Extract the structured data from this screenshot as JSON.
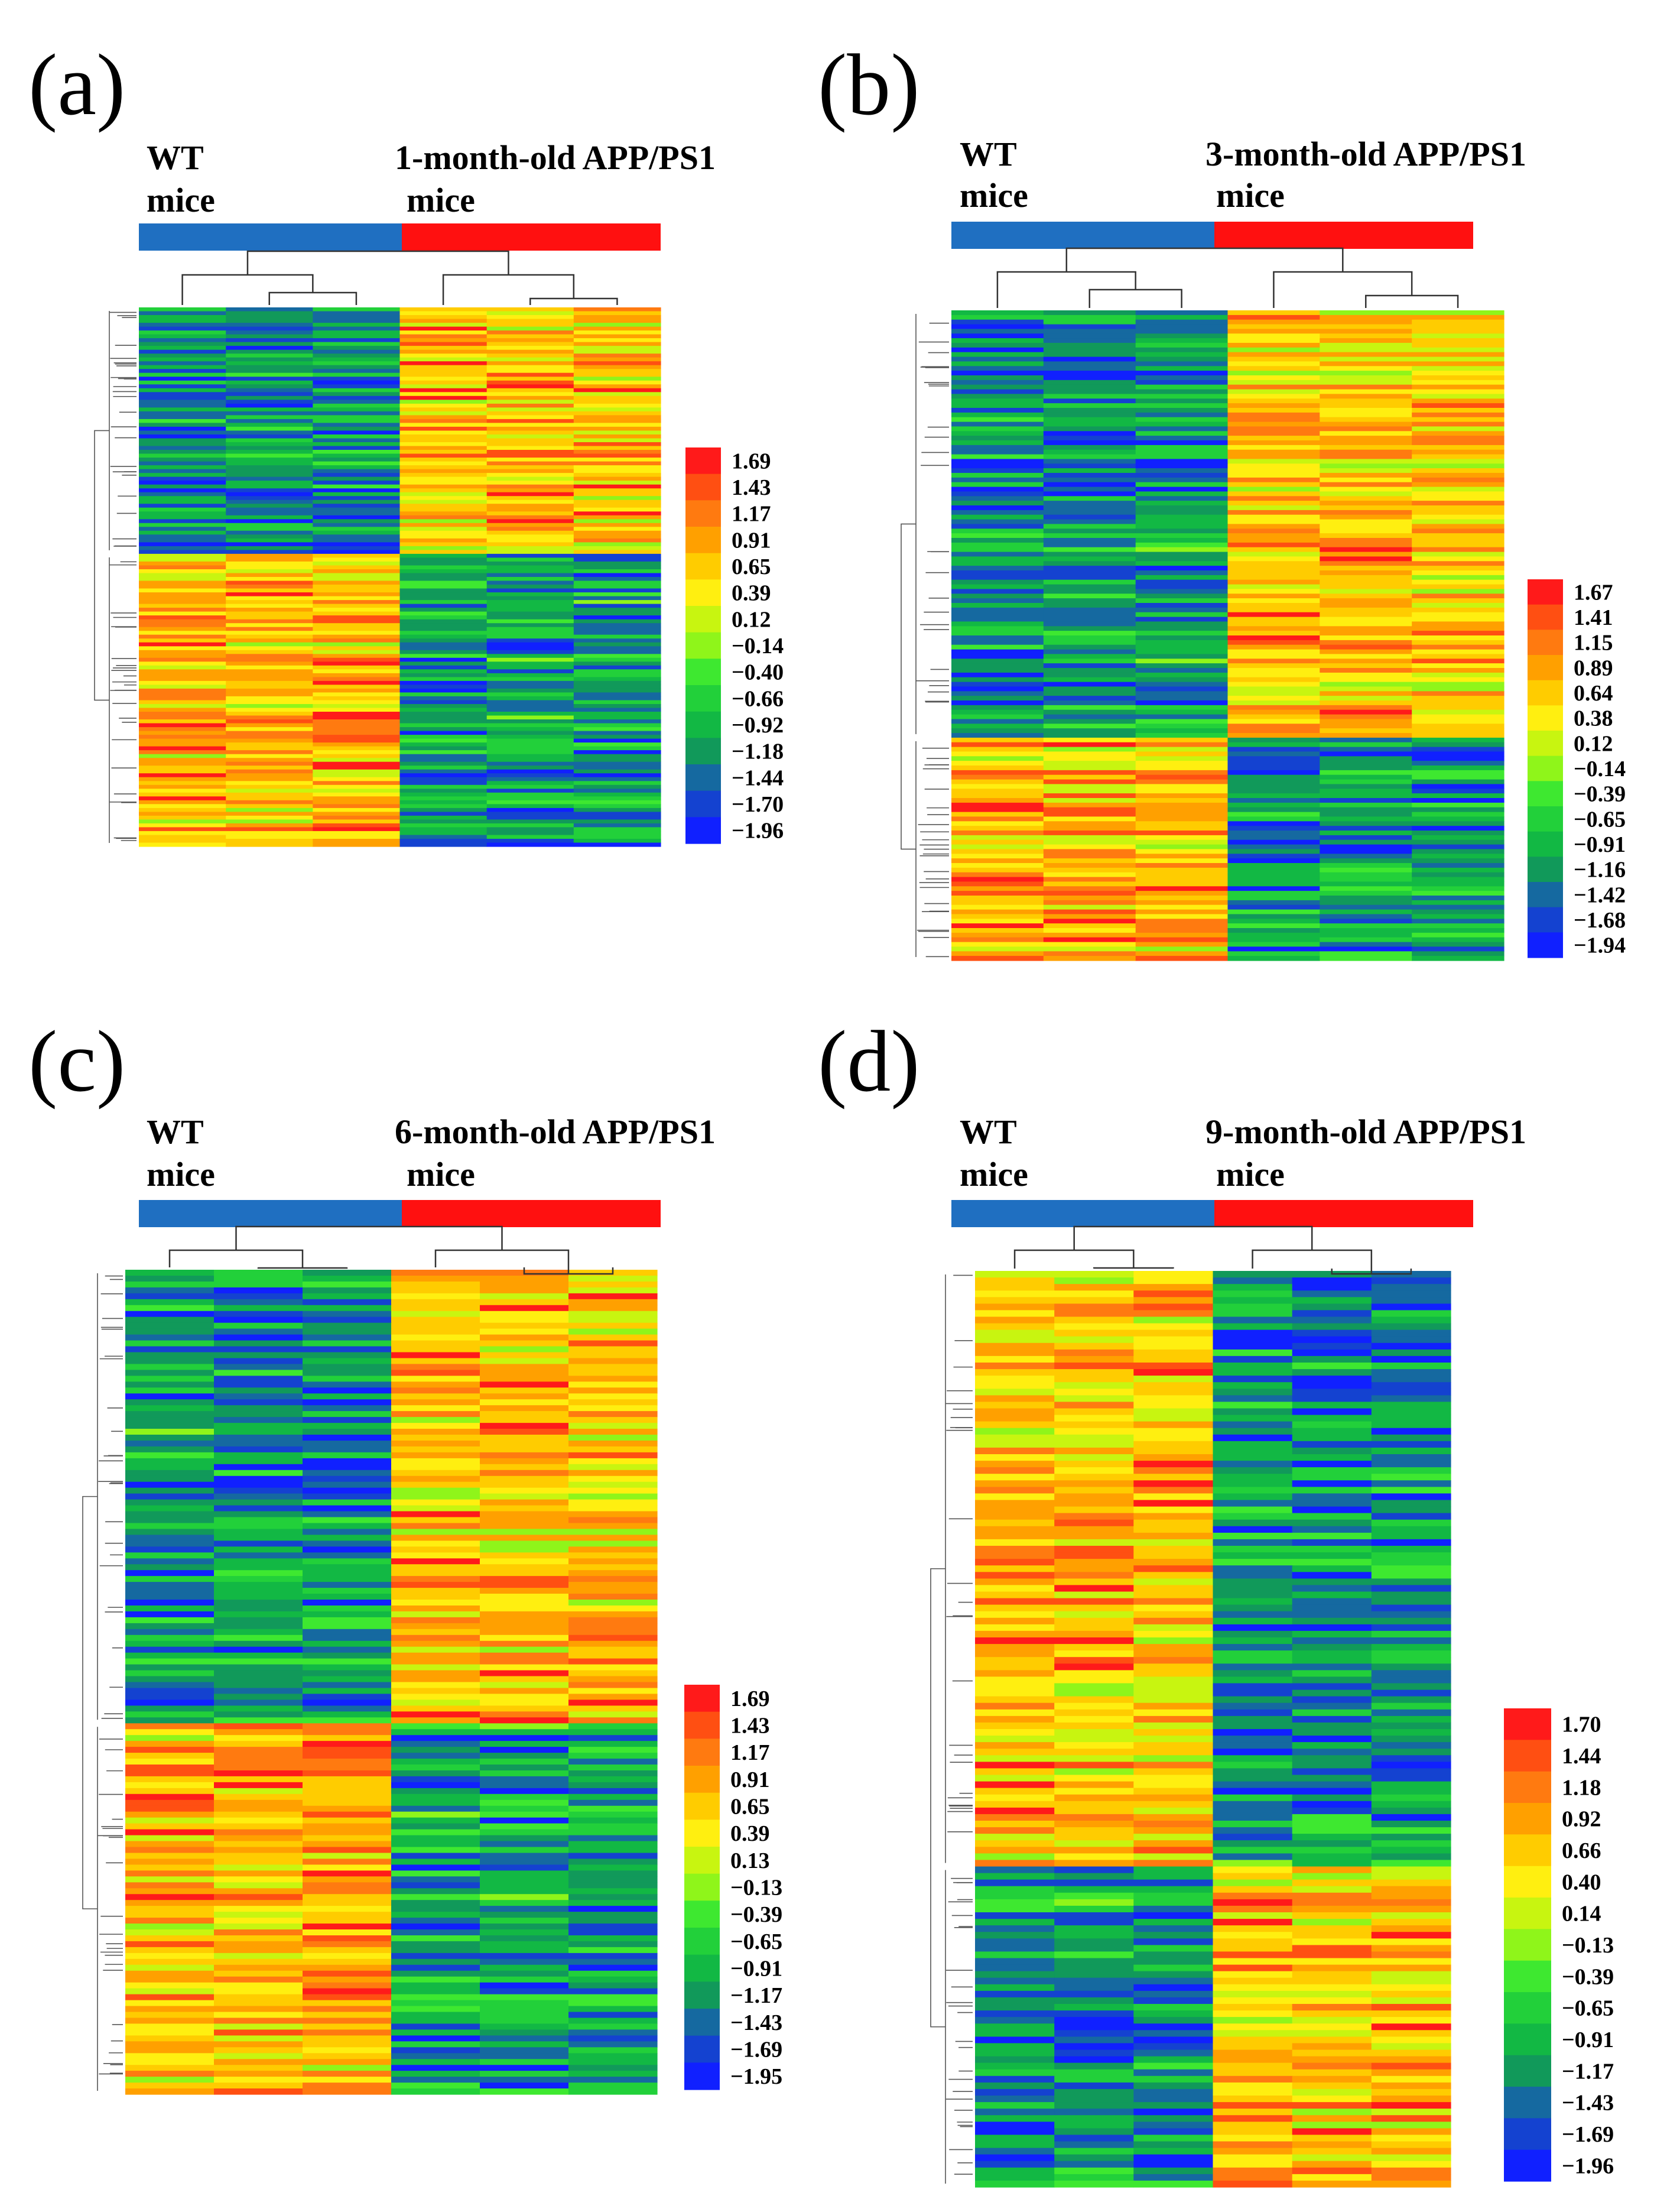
{
  "colors": {
    "wt_bar": "#1f6fc1",
    "app_bar": "#ff1010",
    "scale": [
      "#ff1a1a",
      "#ff4f12",
      "#ff7a10",
      "#ffa000",
      "#ffcc00",
      "#ffef10",
      "#c8f510",
      "#8ff51a",
      "#3ee830",
      "#22d03a",
      "#12b844",
      "#11995a",
      "#1569a0",
      "#1442d0",
      "#1020ff"
    ]
  },
  "chart_data": [
    {
      "type": "heatmap",
      "panel_label": "(a)",
      "group1": {
        "line1": "WT",
        "line2": "mice",
        "samples": 3
      },
      "group2": {
        "line1": "1-month-old APP/PS1",
        "line2": "mice",
        "samples": 3
      },
      "upper_fraction": 0.46,
      "seed": 11,
      "legend": [
        "1.69",
        "1.43",
        "1.17",
        "0.91",
        "0.65",
        "0.39",
        "0.12",
        "−0.14",
        "−0.40",
        "−0.66",
        "−0.92",
        "−1.18",
        "−1.44",
        "−1.70",
        "−1.96"
      ]
    },
    {
      "type": "heatmap",
      "panel_label": "(b)",
      "group1": {
        "line1": "WT",
        "line2": "mice",
        "samples": 3
      },
      "group2": {
        "line1": "3-month-old APP/PS1",
        "line2": "mice",
        "samples": 3
      },
      "upper_fraction": 0.66,
      "seed": 23,
      "legend": [
        "1.67",
        "1.41",
        "1.15",
        "0.89",
        "0.64",
        "0.38",
        "0.12",
        "−0.14",
        "−0.39",
        "−0.65",
        "−0.91",
        "−1.16",
        "−1.42",
        "−1.68",
        "−1.94"
      ]
    },
    {
      "type": "heatmap",
      "panel_label": "(c)",
      "group1": {
        "line1": "WT",
        "line2": "mice",
        "samples": 3
      },
      "group2": {
        "line1": "6-month-old APP/PS1",
        "line2": "mice",
        "samples": 3
      },
      "upper_fraction": 0.55,
      "seed": 37,
      "legend": [
        "1.69",
        "1.43",
        "1.17",
        "0.91",
        "0.65",
        "0.39",
        "0.13",
        "−0.13",
        "−0.39",
        "−0.65",
        "−0.91",
        "−1.17",
        "−1.43",
        "−1.69",
        "−1.95"
      ]
    },
    {
      "type": "heatmap",
      "panel_label": "(d)",
      "group1": {
        "line1": "WT",
        "line2": "mice",
        "samples": 3
      },
      "group2": {
        "line1": "9-month-old APP/PS1",
        "line2": "mice",
        "samples": 3
      },
      "upper_fraction": 0.65,
      "upper_pattern": "wt_high",
      "seed": 53,
      "legend": [
        "1.70",
        "1.44",
        "1.18",
        "0.92",
        "0.66",
        "0.40",
        "0.14",
        "−0.13",
        "−0.39",
        "−0.65",
        "−0.91",
        "−1.17",
        "−1.43",
        "−1.69",
        "−1.96"
      ]
    }
  ]
}
